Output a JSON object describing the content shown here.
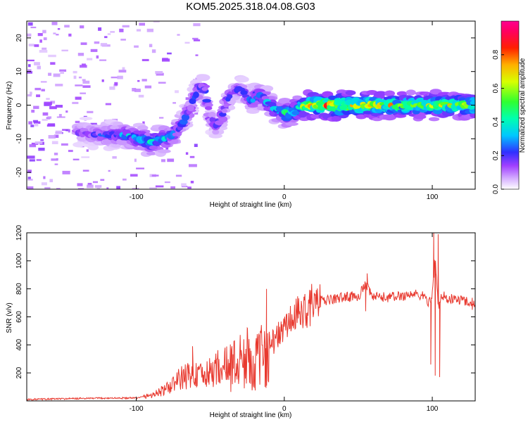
{
  "title": "KOM5.2025.318.04.08.G03",
  "chart_data": [
    {
      "type": "heatmap",
      "name": "spectrogram",
      "xlabel": "Height of straight line (km)",
      "ylabel": "Frequency (Hz)",
      "xlim": [
        -174,
        129
      ],
      "ylim": [
        -25,
        25
      ],
      "xticks": [
        -100,
        0,
        100
      ],
      "xtick_labels": [
        "-100",
        "0",
        "100"
      ],
      "yticks": [
        -20,
        -10,
        0,
        10,
        20
      ],
      "ytick_labels": [
        "-20",
        "-10",
        "0",
        "10",
        "20"
      ],
      "ridge": {
        "x": [
          -135,
          -125,
          -115,
          -105,
          -98,
          -90,
          -82,
          -76,
          -72,
          -68,
          -64,
          -60,
          -57,
          -54,
          -50,
          -46,
          -42,
          -38,
          -34,
          -30,
          -26,
          -22,
          -18,
          -14,
          -10,
          -6,
          -2,
          2,
          6,
          10,
          16,
          25,
          35,
          50,
          70,
          90,
          110,
          129
        ],
        "y": [
          -8,
          -9,
          -8.8,
          -9,
          -10,
          -11,
          -10,
          -9,
          -7,
          -5,
          -1,
          3,
          5,
          5,
          -4,
          -6,
          -3,
          2,
          4,
          5,
          3,
          1,
          3,
          2,
          0,
          -1,
          -2,
          -2.5,
          -2,
          -1,
          0,
          0,
          0,
          0,
          0,
          0,
          0,
          0
        ],
        "amplitude": [
          0.2,
          0.25,
          0.3,
          0.35,
          0.4,
          0.45,
          0.4,
          0.35,
          0.3,
          0.25,
          0.25,
          0.25,
          0.3,
          0.3,
          0.2,
          0.25,
          0.3,
          0.25,
          0.2,
          0.2,
          0.25,
          0.3,
          0.35,
          0.35,
          0.35,
          0.4,
          0.45,
          0.55,
          0.55,
          0.6,
          0.8,
          0.9,
          0.95,
          0.85,
          0.8,
          0.7,
          0.8,
          0.7
        ]
      },
      "colorbar": {
        "label": "Normalized spectral amplitude",
        "range": [
          0,
          1
        ],
        "ticks": [
          0.0,
          0.2,
          0.4,
          0.6,
          0.8
        ],
        "tick_labels": [
          "0.0",
          "0.2",
          "0.4",
          "0.6",
          "0.8"
        ]
      }
    },
    {
      "type": "line",
      "name": "snr",
      "xlabel": "Height of straight line (km)",
      "ylabel": "SNR (v/v)",
      "xlim": [
        -174,
        129
      ],
      "ylim": [
        0,
        1200
      ],
      "xticks": [
        -100,
        0,
        100
      ],
      "xtick_labels": [
        "-100",
        "0",
        "100"
      ],
      "yticks": [
        200,
        400,
        600,
        800,
        1000,
        1200
      ],
      "ytick_labels": [
        "200",
        "400",
        "600",
        "800",
        "1000",
        "1200"
      ],
      "color": "#e8392f",
      "x": [
        -174,
        -150,
        -120,
        -100,
        -90,
        -80,
        -75,
        -70,
        -65,
        -60,
        -55,
        -50,
        -45,
        -40,
        -35,
        -30,
        -25,
        -20,
        -15,
        -10,
        -5,
        0,
        5,
        10,
        15,
        20,
        25,
        30,
        40,
        50,
        55,
        60,
        70,
        80,
        85,
        90,
        95,
        98,
        100,
        102,
        104,
        106,
        110,
        120,
        129
      ],
      "y": [
        10,
        15,
        20,
        20,
        40,
        80,
        120,
        160,
        180,
        190,
        170,
        200,
        240,
        230,
        260,
        280,
        300,
        260,
        320,
        400,
        450,
        520,
        580,
        620,
        660,
        700,
        710,
        720,
        740,
        750,
        820,
        740,
        740,
        750,
        760,
        760,
        740,
        700,
        760,
        1050,
        650,
        740,
        730,
        720,
        700
      ],
      "spikes": [
        {
          "x": -62,
          "y": 390
        },
        {
          "x": -40,
          "y": 380
        },
        {
          "x": -25,
          "y": 520
        },
        {
          "x": -17,
          "y": 470
        },
        {
          "x": -13,
          "y": 100
        },
        {
          "x": -12,
          "y": 800
        },
        {
          "x": 55,
          "y": 640
        },
        {
          "x": 56,
          "y": 910
        },
        {
          "x": 99,
          "y": 260
        },
        {
          "x": 101,
          "y": 1200
        },
        {
          "x": 102,
          "y": 180
        },
        {
          "x": 104,
          "y": 1190
        },
        {
          "x": 105,
          "y": 170
        },
        {
          "x": 108,
          "y": 780
        },
        {
          "x": 127,
          "y": 650
        }
      ]
    }
  ]
}
